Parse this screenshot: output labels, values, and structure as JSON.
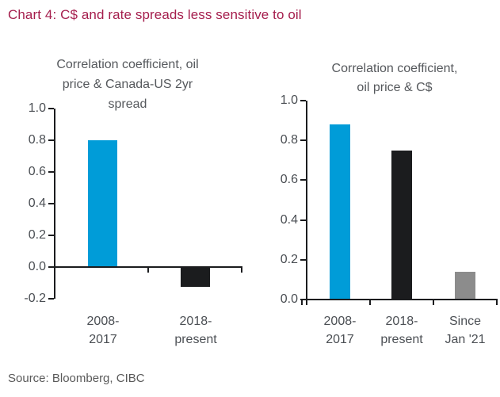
{
  "header": {
    "title": "Chart 4: C$ and rate spreads less sensitive to oil"
  },
  "footer": {
    "source": "Source: Bloomberg, CIBC"
  },
  "colors": {
    "title_burgundy": "#A51E4D",
    "accent_blue": "#009CD8",
    "bar_black": "#1B1C1E",
    "bar_gray": "#8C8C8C",
    "axis": "#1B1C1E",
    "label_gray": "#4B4F54",
    "chart_title_gray": "#55585C",
    "source_gray": "#595959"
  },
  "chart_data": [
    {
      "type": "bar",
      "title": "Correlation coefficient, oil price & Canada-US 2yr spread",
      "title_lines": [
        "Correlation coefficient, oil",
        "price & Canada-US 2yr",
        "spread"
      ],
      "categories": [
        [
          "2008-",
          "2017"
        ],
        [
          "2018-",
          "present"
        ]
      ],
      "values": [
        0.8,
        -0.12
      ],
      "bar_colors": [
        "#009CD8",
        "#1B1C1E"
      ],
      "ylim": [
        -0.2,
        1.0
      ],
      "ytick_labels": [
        "1.0",
        "0.8",
        "0.6",
        "0.4",
        "0.2",
        "0.0",
        "-0.2"
      ],
      "xlabel": "",
      "ylabel": "",
      "grid": false,
      "legend_position": "none"
    },
    {
      "type": "bar",
      "title": "Correlation coefficient, oil price & C$",
      "title_lines": [
        "Correlation coefficient,",
        "oil price & C$"
      ],
      "categories": [
        [
          "2008-",
          "2017"
        ],
        [
          "2018-",
          "present"
        ],
        [
          "Since",
          "Jan '21"
        ]
      ],
      "values": [
        0.88,
        0.75,
        0.14
      ],
      "bar_colors": [
        "#009CD8",
        "#1B1C1E",
        "#8C8C8C"
      ],
      "ylim": [
        0.0,
        1.0
      ],
      "ytick_labels": [
        "1.0",
        "0.8",
        "0.6",
        "0.4",
        "0.2",
        "0.0"
      ],
      "xlabel": "",
      "ylabel": "",
      "grid": false,
      "legend_position": "none"
    }
  ]
}
